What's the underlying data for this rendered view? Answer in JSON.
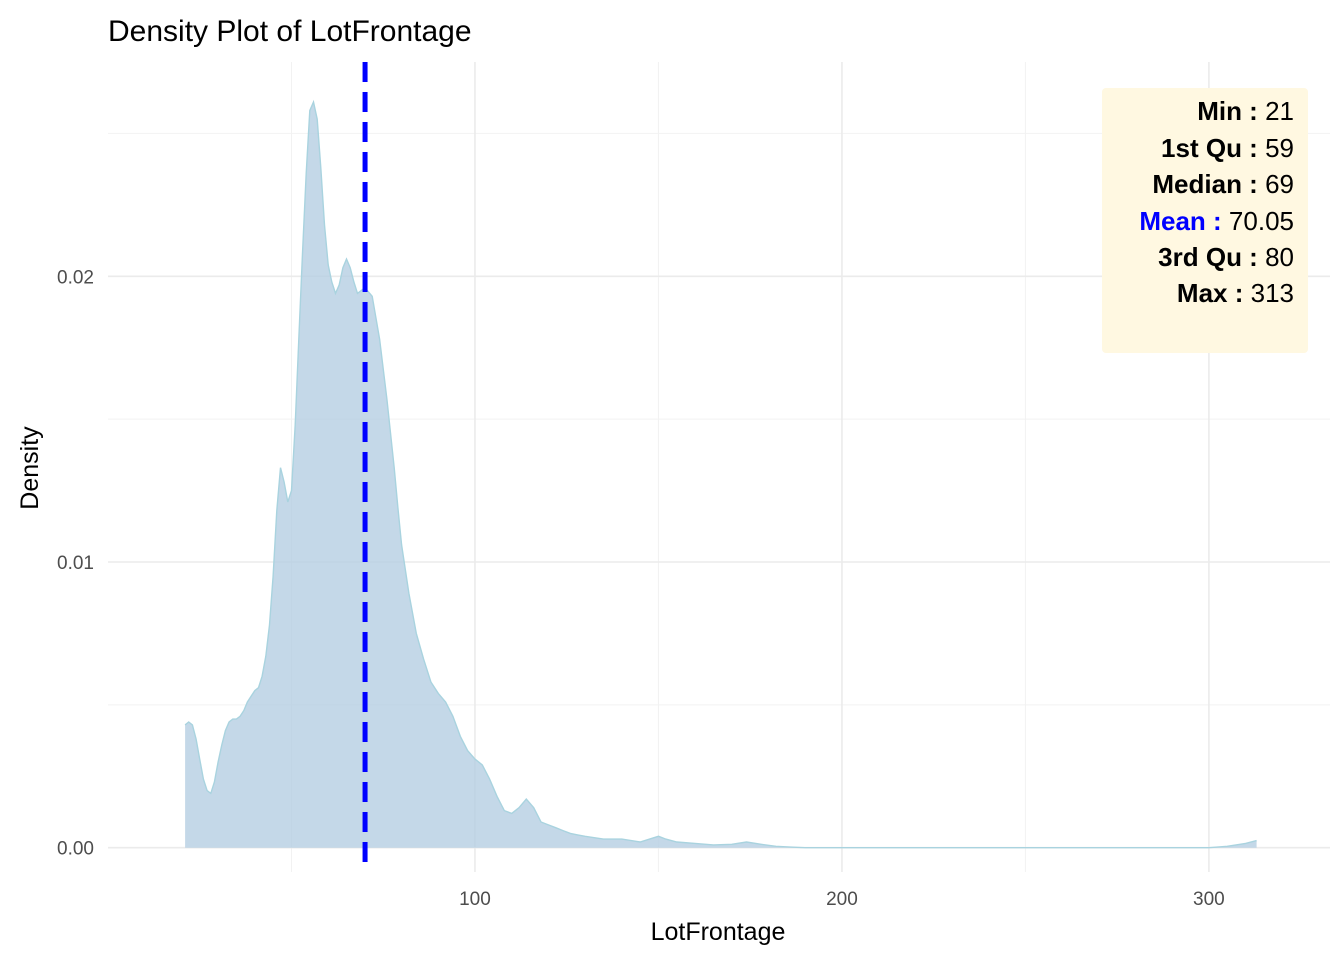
{
  "chart_data": {
    "type": "area",
    "title": "Density Plot of LotFrontage",
    "xlabel": "LotFrontage",
    "ylabel": "Density",
    "xlim": [
      0.0,
      333.0
    ],
    "ylim": [
      -0.00085,
      0.0275
    ],
    "x_ticks": [
      100,
      200,
      300
    ],
    "x_tick_labels": [
      "100",
      "200",
      "300"
    ],
    "x_minor": [
      50,
      150,
      250
    ],
    "y_ticks": [
      0.0,
      0.01,
      0.02
    ],
    "y_tick_labels": [
      "0.00",
      "0.01",
      "0.02"
    ],
    "y_minor": [
      0.005,
      0.015,
      0.025
    ],
    "grid": true,
    "fill_color": "#b4cde2",
    "fill_opacity": 0.78,
    "line_color": "#a9d3df",
    "mean_line": {
      "x": 70.05,
      "color": "#0000ff",
      "style": "dashed"
    },
    "series": [
      {
        "x": [
          21,
          22,
          23,
          24,
          25,
          26,
          27,
          28,
          29,
          30,
          31,
          32,
          33,
          34,
          35,
          36,
          37,
          38,
          39,
          40,
          41,
          42,
          43,
          44,
          45,
          46,
          47,
          48,
          49,
          50,
          51,
          52,
          53,
          54,
          55,
          56,
          57,
          58,
          59,
          60,
          61,
          62,
          63,
          64,
          65,
          66,
          67,
          68,
          69,
          70,
          72,
          74,
          76,
          78,
          79,
          80,
          82,
          84,
          86,
          88,
          90,
          92,
          94,
          96,
          98,
          100,
          102,
          104,
          106,
          108,
          110,
          112,
          114,
          116,
          118,
          120,
          122,
          124,
          126,
          128,
          130,
          135,
          140,
          145,
          150,
          152,
          155,
          160,
          165,
          170,
          174,
          178,
          182,
          186,
          190,
          200,
          250,
          300,
          305,
          310,
          313
        ],
        "values": [
          0.0043,
          0.0044,
          0.0043,
          0.0038,
          0.0031,
          0.0024,
          0.002,
          0.0019,
          0.0023,
          0.003,
          0.0036,
          0.0041,
          0.0044,
          0.0045,
          0.0045,
          0.0046,
          0.0048,
          0.0051,
          0.0053,
          0.0055,
          0.0056,
          0.006,
          0.0067,
          0.0078,
          0.0095,
          0.0118,
          0.0133,
          0.0128,
          0.0121,
          0.0125,
          0.0148,
          0.0178,
          0.0208,
          0.0236,
          0.0258,
          0.0261,
          0.0255,
          0.0238,
          0.0218,
          0.0204,
          0.0198,
          0.0194,
          0.0197,
          0.0203,
          0.0206,
          0.0203,
          0.0198,
          0.0194,
          0.0195,
          0.0196,
          0.0193,
          0.0178,
          0.0157,
          0.0133,
          0.0119,
          0.0106,
          0.0089,
          0.0075,
          0.0066,
          0.0058,
          0.0054,
          0.0051,
          0.0046,
          0.0039,
          0.0034,
          0.0031,
          0.0029,
          0.0024,
          0.0018,
          0.0013,
          0.0012,
          0.0014,
          0.0017,
          0.0014,
          0.0009,
          0.0008,
          0.0007,
          0.0006,
          0.0005,
          0.00045,
          0.0004,
          0.0003,
          0.0003,
          0.0002,
          0.0004,
          0.0003,
          0.0002,
          0.00015,
          0.0001,
          0.00012,
          0.0002,
          0.00012,
          5e-05,
          2e-05,
          0.0,
          0.0,
          0.0,
          0.0,
          5e-05,
          0.00015,
          0.00025
        ]
      }
    ]
  },
  "stats_box": {
    "background": "#fff8e1",
    "items": [
      {
        "key": "Min :",
        "value": "21",
        "key_color": "#000000"
      },
      {
        "key": "1st Qu :",
        "value": "59",
        "key_color": "#000000"
      },
      {
        "key": "Median :",
        "value": "69",
        "key_color": "#000000"
      },
      {
        "key": "Mean :",
        "value": "70.05",
        "key_color": "#0000ff"
      },
      {
        "key": "3rd Qu :",
        "value": "80",
        "key_color": "#000000"
      },
      {
        "key": "Max :",
        "value": "313",
        "key_color": "#000000"
      }
    ]
  }
}
